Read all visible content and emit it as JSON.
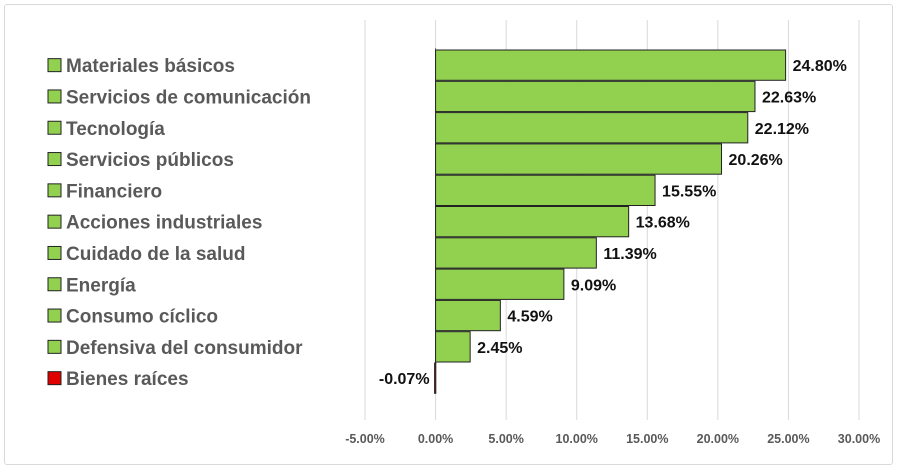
{
  "chart_data": {
    "type": "bar",
    "orientation": "horizontal",
    "categories": [
      "Materiales básicos",
      "Servicios de comunicación",
      "Tecnología",
      "Servicios públicos",
      "Financiero",
      "Acciones industriales",
      "Cuidado de la salud",
      "Energía",
      "Consumo cíclico",
      "Defensiva del consumidor",
      "Bienes raíces"
    ],
    "values": [
      24.8,
      22.63,
      22.12,
      20.26,
      15.55,
      13.68,
      11.39,
      9.09,
      4.59,
      2.45,
      -0.07
    ],
    "value_labels": [
      "24.80%",
      "22.63%",
      "22.12%",
      "20.26%",
      "15.55%",
      "13.68%",
      "11.39%",
      "9.09%",
      "4.59%",
      "2.45%",
      "-0.07%"
    ],
    "xlim": [
      -5,
      30
    ],
    "xticks": [
      -5,
      0,
      5,
      10,
      15,
      20,
      25,
      30
    ],
    "xtick_labels": [
      "-5.00%",
      "0.00%",
      "5.00%",
      "10.00%",
      "15.00%",
      "20.00%",
      "25.00%",
      "30.00%"
    ],
    "colors": {
      "positive": "#92d050",
      "negative": "#e00000",
      "bar_border": "#222222",
      "grid": "#d9d9d9"
    },
    "grid": true,
    "legend": "left"
  }
}
